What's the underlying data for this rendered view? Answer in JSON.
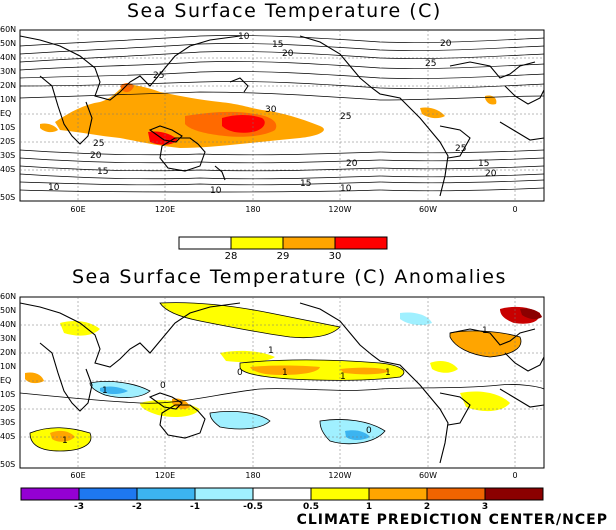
{
  "titles": {
    "sst": "Sea Surface Temperature (C)",
    "anom": "Sea Surface Temperature (C) Anomalies"
  },
  "credit": "CLIMATE PREDICTION CENTER/NCEP",
  "lat_labels": [
    "60N",
    "50N",
    "40N",
    "30N",
    "20N",
    "10N",
    "EQ",
    "10S",
    "20S",
    "30S",
    "40S",
    "50S"
  ],
  "lon_labels": [
    "60E",
    "120E",
    "180",
    "120W",
    "60W",
    "0"
  ],
  "sst_colorbar": {
    "labels": [
      "28",
      "29",
      "30"
    ],
    "colors": [
      "#ffffff",
      "#ffff00",
      "#ffa500",
      "#ff6a00",
      "#ff0000"
    ]
  },
  "anom_colorbar": {
    "labels": [
      "-3",
      "-2",
      "-1",
      "-0.5",
      "0.5",
      "1",
      "2",
      "3"
    ],
    "colors": [
      "#9400d3",
      "#1e78f0",
      "#3cb4f0",
      "#a0f0ff",
      "#ffffff",
      "#ffff00",
      "#ffa500",
      "#f06400",
      "#c80000",
      "#8b0000"
    ]
  },
  "contour_labels_sst": [
    "10",
    "15",
    "20",
    "25",
    "30",
    "25",
    "20",
    "15",
    "10",
    "25",
    "20",
    "15",
    "20",
    "25",
    "10",
    "25",
    "20",
    "15",
    "10"
  ],
  "contour_labels_anom": [
    "1",
    "1",
    "1",
    "1",
    "0",
    "1",
    "0",
    "1",
    "0",
    "1"
  ]
}
